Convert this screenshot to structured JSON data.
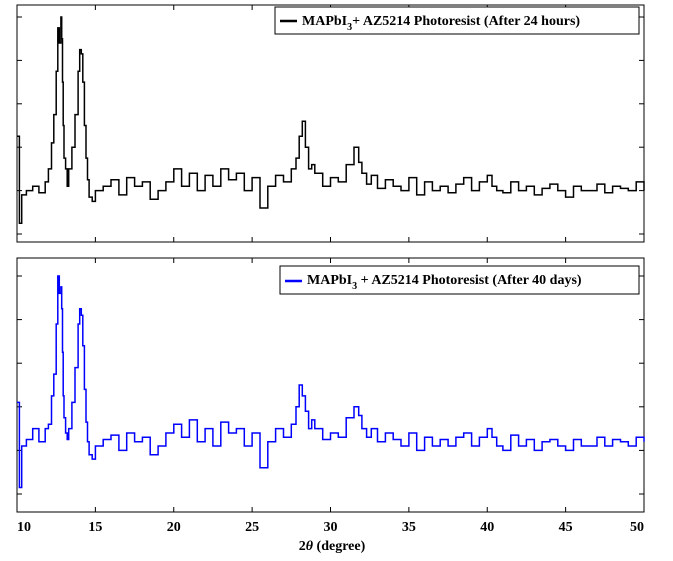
{
  "chart_data": [
    {
      "type": "line",
      "title": "",
      "xlabel": "",
      "ylabel": "",
      "xlim": [
        10,
        50
      ],
      "ylim": [
        0,
        1
      ],
      "y_ticks_labeled": false,
      "legend_position": "top-right",
      "series": [
        {
          "name": "MAPbI3+ AZ5214 Photoresist (After 24 hours)",
          "legend": {
            "base": "MAPbI",
            "sub": "3",
            "rest": "+ AZ5214 Photoresist (After 24 hours)"
          },
          "color": "#000000",
          "x": [
            10.0,
            10.15,
            10.3,
            10.6,
            11.0,
            11.4,
            11.8,
            12.0,
            12.2,
            12.35,
            12.5,
            12.6,
            12.7,
            12.8,
            12.85,
            12.9,
            12.95,
            13.0,
            13.1,
            13.2,
            13.3,
            13.5,
            13.7,
            13.9,
            14.0,
            14.1,
            14.2,
            14.3,
            14.4,
            14.5,
            14.6,
            14.8,
            15.0,
            15.5,
            16.0,
            16.5,
            17.0,
            17.5,
            18.0,
            18.5,
            19.0,
            19.5,
            20.0,
            20.5,
            21.0,
            21.5,
            22.0,
            22.5,
            23.0,
            23.5,
            24.0,
            24.5,
            25.0,
            25.5,
            26.0,
            26.5,
            27.0,
            27.5,
            27.8,
            28.0,
            28.2,
            28.4,
            28.6,
            28.8,
            29.0,
            29.5,
            30.0,
            30.5,
            31.0,
            31.5,
            31.8,
            32.0,
            32.3,
            32.6,
            33.0,
            33.5,
            34.0,
            34.5,
            35.0,
            35.5,
            36.0,
            36.5,
            37.0,
            37.5,
            38.0,
            38.5,
            39.0,
            39.5,
            40.0,
            40.3,
            40.6,
            41.0,
            41.5,
            42.0,
            42.5,
            43.0,
            43.5,
            44.0,
            44.5,
            45.0,
            45.5,
            46.0,
            46.5,
            47.0,
            47.5,
            48.0,
            48.5,
            49.0,
            49.5,
            50.0
          ],
          "y": [
            0.45,
            0.05,
            0.18,
            0.2,
            0.22,
            0.19,
            0.24,
            0.3,
            0.42,
            0.55,
            0.75,
            0.95,
            0.88,
            1.0,
            0.9,
            0.7,
            0.5,
            0.35,
            0.3,
            0.22,
            0.3,
            0.4,
            0.55,
            0.75,
            0.85,
            0.83,
            0.7,
            0.5,
            0.35,
            0.25,
            0.17,
            0.15,
            0.2,
            0.22,
            0.25,
            0.18,
            0.26,
            0.22,
            0.24,
            0.16,
            0.2,
            0.24,
            0.3,
            0.22,
            0.28,
            0.2,
            0.27,
            0.22,
            0.3,
            0.25,
            0.28,
            0.2,
            0.26,
            0.12,
            0.22,
            0.27,
            0.24,
            0.3,
            0.35,
            0.45,
            0.52,
            0.4,
            0.3,
            0.32,
            0.28,
            0.22,
            0.26,
            0.24,
            0.32,
            0.4,
            0.33,
            0.28,
            0.23,
            0.27,
            0.21,
            0.25,
            0.22,
            0.2,
            0.26,
            0.18,
            0.24,
            0.2,
            0.22,
            0.19,
            0.23,
            0.26,
            0.2,
            0.24,
            0.27,
            0.22,
            0.2,
            0.19,
            0.24,
            0.2,
            0.22,
            0.18,
            0.21,
            0.23,
            0.2,
            0.17,
            0.22,
            0.2,
            0.2,
            0.23,
            0.19,
            0.22,
            0.21,
            0.2,
            0.24,
            0.2
          ]
        },
        {
          "name": "MAPbI3 + AZ5214 Photoresist (After 40 days)",
          "legend": {
            "base": "MAPbI",
            "sub": "3",
            "rest": " + AZ5214 Photoresist (After 40 days)"
          },
          "color": "#0000ff",
          "x": [
            10.0,
            10.15,
            10.3,
            10.6,
            11.0,
            11.4,
            11.8,
            12.0,
            12.2,
            12.35,
            12.5,
            12.6,
            12.7,
            12.8,
            12.85,
            12.9,
            12.95,
            13.0,
            13.1,
            13.2,
            13.3,
            13.5,
            13.7,
            13.9,
            14.0,
            14.1,
            14.2,
            14.3,
            14.4,
            14.5,
            14.6,
            14.8,
            15.0,
            15.5,
            16.0,
            16.5,
            17.0,
            17.5,
            18.0,
            18.5,
            19.0,
            19.5,
            20.0,
            20.5,
            21.0,
            21.5,
            22.0,
            22.5,
            23.0,
            23.5,
            24.0,
            24.5,
            25.0,
            25.5,
            26.0,
            26.5,
            27.0,
            27.5,
            27.8,
            28.0,
            28.2,
            28.4,
            28.6,
            28.8,
            29.0,
            29.5,
            30.0,
            30.5,
            31.0,
            31.5,
            31.8,
            32.0,
            32.3,
            32.6,
            33.0,
            33.5,
            34.0,
            34.5,
            35.0,
            35.5,
            36.0,
            36.5,
            37.0,
            37.5,
            38.0,
            38.5,
            39.0,
            39.5,
            40.0,
            40.3,
            40.6,
            41.0,
            41.5,
            42.0,
            42.5,
            43.0,
            43.5,
            44.0,
            44.5,
            45.0,
            45.5,
            46.0,
            46.5,
            47.0,
            47.5,
            48.0,
            48.5,
            49.0,
            49.5,
            50.0
          ],
          "y": [
            0.42,
            0.03,
            0.22,
            0.25,
            0.3,
            0.24,
            0.3,
            0.32,
            0.45,
            0.55,
            0.78,
            1.0,
            0.92,
            0.95,
            0.85,
            0.65,
            0.45,
            0.35,
            0.28,
            0.25,
            0.3,
            0.42,
            0.58,
            0.78,
            0.85,
            0.82,
            0.68,
            0.48,
            0.33,
            0.24,
            0.18,
            0.16,
            0.22,
            0.25,
            0.27,
            0.2,
            0.28,
            0.24,
            0.26,
            0.18,
            0.22,
            0.28,
            0.32,
            0.26,
            0.34,
            0.24,
            0.3,
            0.22,
            0.33,
            0.28,
            0.3,
            0.22,
            0.28,
            0.12,
            0.24,
            0.3,
            0.26,
            0.32,
            0.4,
            0.5,
            0.45,
            0.38,
            0.3,
            0.34,
            0.3,
            0.25,
            0.28,
            0.26,
            0.35,
            0.4,
            0.36,
            0.3,
            0.26,
            0.3,
            0.24,
            0.28,
            0.25,
            0.22,
            0.28,
            0.2,
            0.26,
            0.22,
            0.25,
            0.22,
            0.26,
            0.28,
            0.22,
            0.26,
            0.3,
            0.26,
            0.22,
            0.2,
            0.27,
            0.22,
            0.25,
            0.2,
            0.24,
            0.25,
            0.22,
            0.2,
            0.25,
            0.22,
            0.22,
            0.26,
            0.22,
            0.25,
            0.24,
            0.22,
            0.26,
            0.24
          ]
        }
      ],
      "x_ticks": [
        10,
        15,
        20,
        25,
        30,
        35,
        40,
        45,
        50
      ],
      "x_tick_labels_shown": false,
      "y_ticks": [
        0,
        0.2,
        0.4,
        0.6,
        0.8,
        1.0
      ]
    },
    {
      "type": "line",
      "title": "",
      "xlim": [
        10,
        50
      ],
      "ylim": [
        0,
        1
      ],
      "x_ticks": [
        10,
        15,
        20,
        25,
        30,
        35,
        40,
        45,
        50
      ],
      "x_tick_labels_shown": true
    }
  ],
  "x_axis": {
    "label_prefix": "2",
    "label_theta": "θ",
    "label_suffix": " (degree)",
    "tick_labels": [
      "10",
      "15",
      "20",
      "25",
      "30",
      "35",
      "40",
      "45",
      "50"
    ]
  }
}
